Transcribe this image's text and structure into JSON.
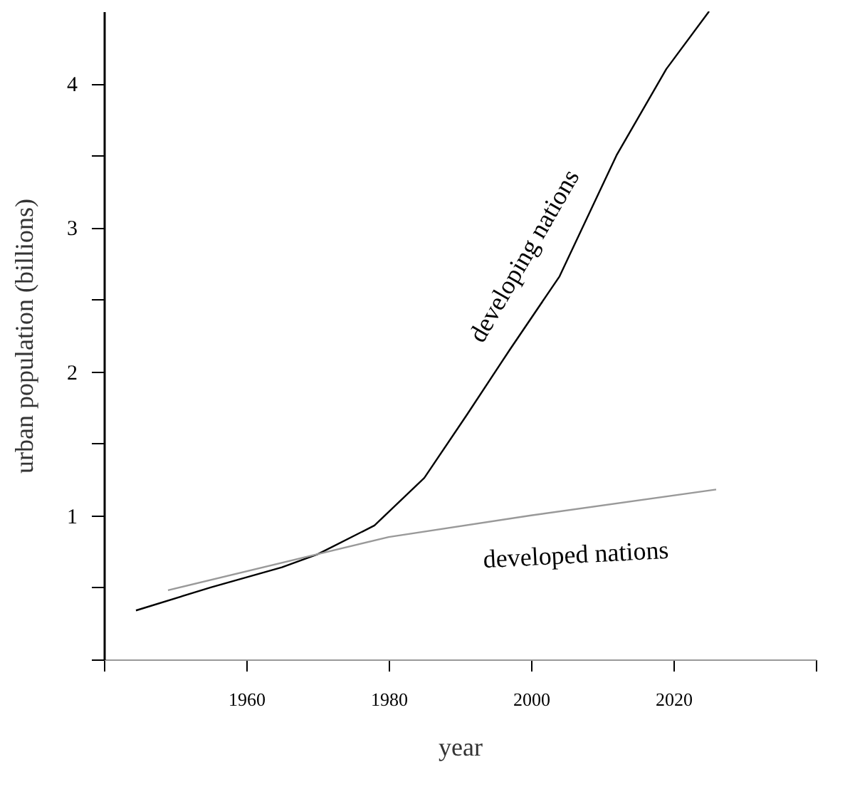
{
  "chart_data": {
    "type": "line",
    "xlabel": "year",
    "ylabel": "urban population (billions)",
    "xlim": [
      1940,
      2040
    ],
    "ylim": [
      0,
      4.5
    ],
    "xticks": [
      {
        "value": 1940,
        "label": null
      },
      1960,
      1980,
      2000,
      2020,
      {
        "value": 2040,
        "label": null
      }
    ],
    "yticks": [
      {
        "value": 0,
        "label": null
      },
      {
        "value": 0.5,
        "label": null
      },
      1,
      {
        "value": 1.5,
        "label": null
      },
      2,
      {
        "value": 2.5,
        "label": null
      },
      3,
      {
        "value": 3.5,
        "label": null
      },
      4
    ],
    "grid": false,
    "legend": false,
    "series": [
      {
        "name": "developing nations",
        "color": "#000000",
        "x": [
          1944.5,
          1955,
          1965,
          1970,
          1978,
          1985,
          1991,
          1997,
          2004,
          2012,
          2019,
          2025
        ],
        "values": [
          0.34,
          0.5,
          0.64,
          0.73,
          0.93,
          1.26,
          1.7,
          2.15,
          2.66,
          3.5,
          4.1,
          4.5
        ]
      },
      {
        "name": "developed nations",
        "color": "#999999",
        "x": [
          1949,
          1980,
          2000,
          2026
        ],
        "values": [
          0.48,
          0.85,
          1.0,
          1.18
        ]
      }
    ]
  }
}
